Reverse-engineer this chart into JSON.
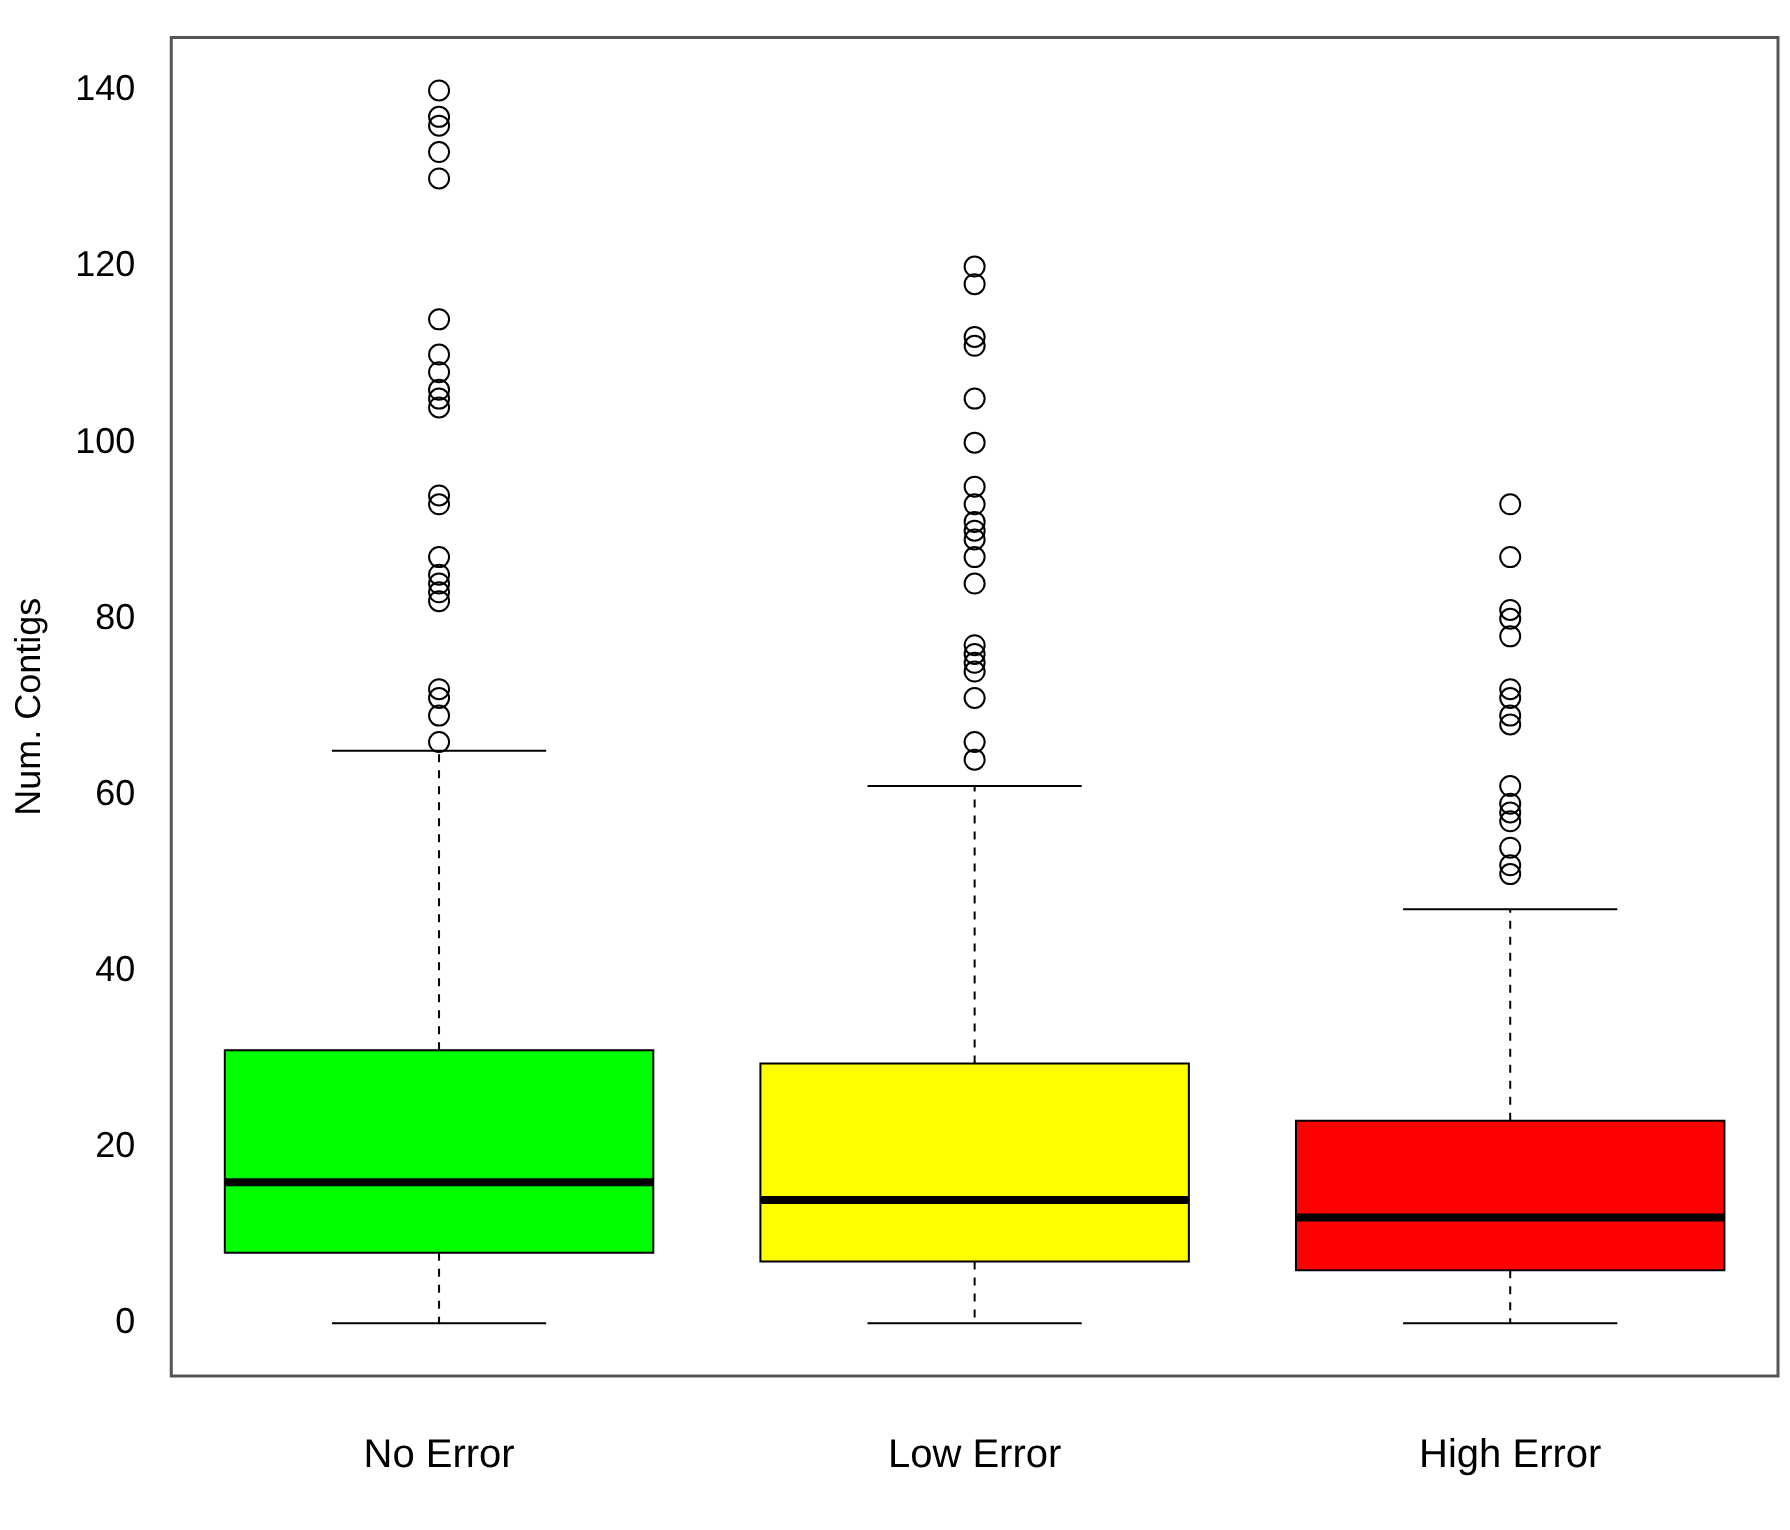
{
  "chart_data": {
    "type": "box",
    "ylabel": "Num. Contigs",
    "categories": [
      "No Error",
      "Low Error",
      "High Error"
    ],
    "colors": [
      "#00ff00",
      "#ffff00",
      "#ff0000"
    ],
    "ylim": [
      -6,
      146
    ],
    "yticks": [
      0,
      20,
      40,
      60,
      80,
      100,
      120,
      140
    ],
    "grid": false,
    "legend": false,
    "marker": "circle",
    "boxes": [
      {
        "low": 0,
        "q1": 8,
        "median": 16,
        "q3": 31,
        "high": 65,
        "outliers": [
          140,
          137,
          136,
          133,
          130,
          114,
          110,
          108,
          106,
          105,
          104,
          94,
          93,
          87,
          85,
          84,
          83,
          82,
          72,
          71,
          69,
          66
        ]
      },
      {
        "low": 0,
        "q1": 7,
        "median": 14,
        "q3": 29.5,
        "high": 61,
        "outliers": [
          120,
          118,
          112,
          111,
          105,
          100,
          95,
          93,
          91,
          90,
          89,
          87,
          84,
          77,
          76,
          75,
          74,
          71,
          66,
          64
        ]
      },
      {
        "low": 0,
        "q1": 6,
        "median": 12,
        "q3": 23,
        "high": 47,
        "outliers": [
          93,
          87,
          81,
          80,
          78,
          72,
          71,
          69,
          68,
          61,
          59,
          58,
          57,
          54,
          52,
          51
        ]
      }
    ]
  }
}
